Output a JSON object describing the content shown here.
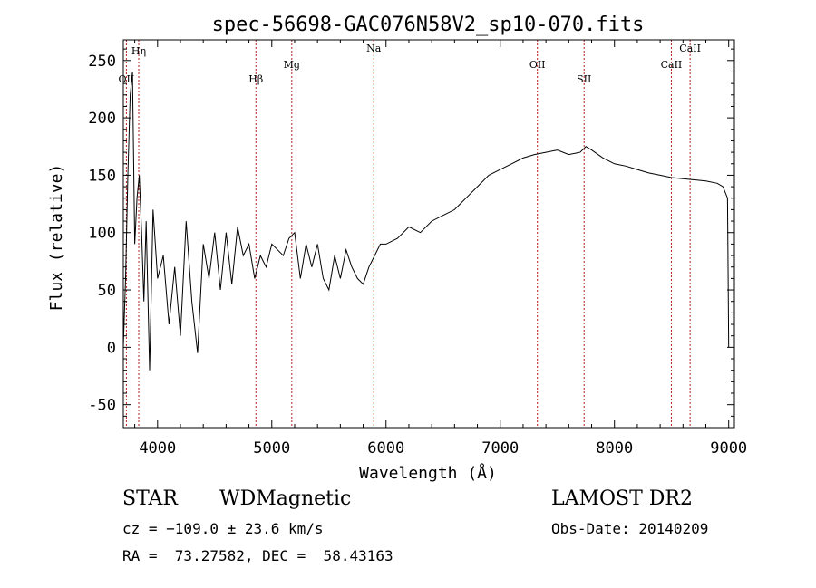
{
  "chart_data": {
    "type": "line",
    "title": "spec-56698-GAC076N58V2_sp10-070.fits",
    "xlabel": "Wavelength (Å)",
    "ylabel": "Flux (relative)",
    "xlim": [
      3700,
      9050
    ],
    "ylim": [
      -70,
      268
    ],
    "x_ticks": [
      4000,
      5000,
      6000,
      7000,
      8000,
      9000
    ],
    "y_ticks": [
      -50,
      0,
      50,
      100,
      150,
      200,
      250
    ],
    "grid": false,
    "series": [
      {
        "color": "#000000",
        "x": [
          3700,
          3720,
          3740,
          3760,
          3780,
          3800,
          3820,
          3840,
          3860,
          3880,
          3900,
          3930,
          3960,
          4000,
          4050,
          4100,
          4150,
          4200,
          4250,
          4300,
          4350,
          4400,
          4450,
          4500,
          4550,
          4600,
          4650,
          4700,
          4750,
          4800,
          4850,
          4900,
          4950,
          5000,
          5050,
          5100,
          5150,
          5200,
          5250,
          5300,
          5350,
          5400,
          5450,
          5500,
          5550,
          5600,
          5650,
          5700,
          5750,
          5800,
          5850,
          5900,
          5950,
          6000,
          6100,
          6200,
          6300,
          6400,
          6500,
          6600,
          6700,
          6800,
          6900,
          7000,
          7100,
          7200,
          7300,
          7400,
          7500,
          7600,
          7700,
          7750,
          7800,
          7900,
          8000,
          8100,
          8200,
          8300,
          8400,
          8500,
          8600,
          8700,
          8800,
          8900,
          8950,
          8990,
          9000
        ],
        "y": [
          0,
          60,
          150,
          220,
          240,
          90,
          130,
          150,
          100,
          40,
          110,
          -20,
          120,
          60,
          80,
          20,
          70,
          10,
          110,
          40,
          -5,
          90,
          60,
          100,
          50,
          100,
          55,
          105,
          80,
          90,
          60,
          80,
          70,
          90,
          85,
          80,
          95,
          100,
          60,
          90,
          70,
          90,
          60,
          50,
          80,
          60,
          85,
          70,
          60,
          55,
          70,
          80,
          90,
          90,
          95,
          105,
          100,
          110,
          115,
          120,
          130,
          140,
          150,
          155,
          160,
          165,
          168,
          170,
          172,
          168,
          170,
          175,
          172,
          165,
          160,
          158,
          155,
          152,
          150,
          148,
          147,
          146,
          145,
          143,
          140,
          130,
          0
        ]
      }
    ],
    "lines": [
      {
        "label": "OII",
        "x": 3727
      },
      {
        "label": "Hη",
        "x": 3835
      },
      {
        "label": "Hβ",
        "x": 4861
      },
      {
        "label": "Mg",
        "x": 5175
      },
      {
        "label": "Na",
        "x": 5893
      },
      {
        "label": "OII",
        "x": 7325
      },
      {
        "label": "SII",
        "x": 7734
      },
      {
        "label": "CaII",
        "x": 8498
      },
      {
        "label": "CaII",
        "x": 8662
      }
    ]
  },
  "info": {
    "class": "STAR",
    "subclass": "WDMagnetic",
    "survey": "LAMOST DR2",
    "cz": "cz = −109.0 ± 23.6 km/s",
    "obs_date": "Obs-Date: 20140209",
    "coords": "RA =  73.27582, DEC =  58.43163"
  }
}
